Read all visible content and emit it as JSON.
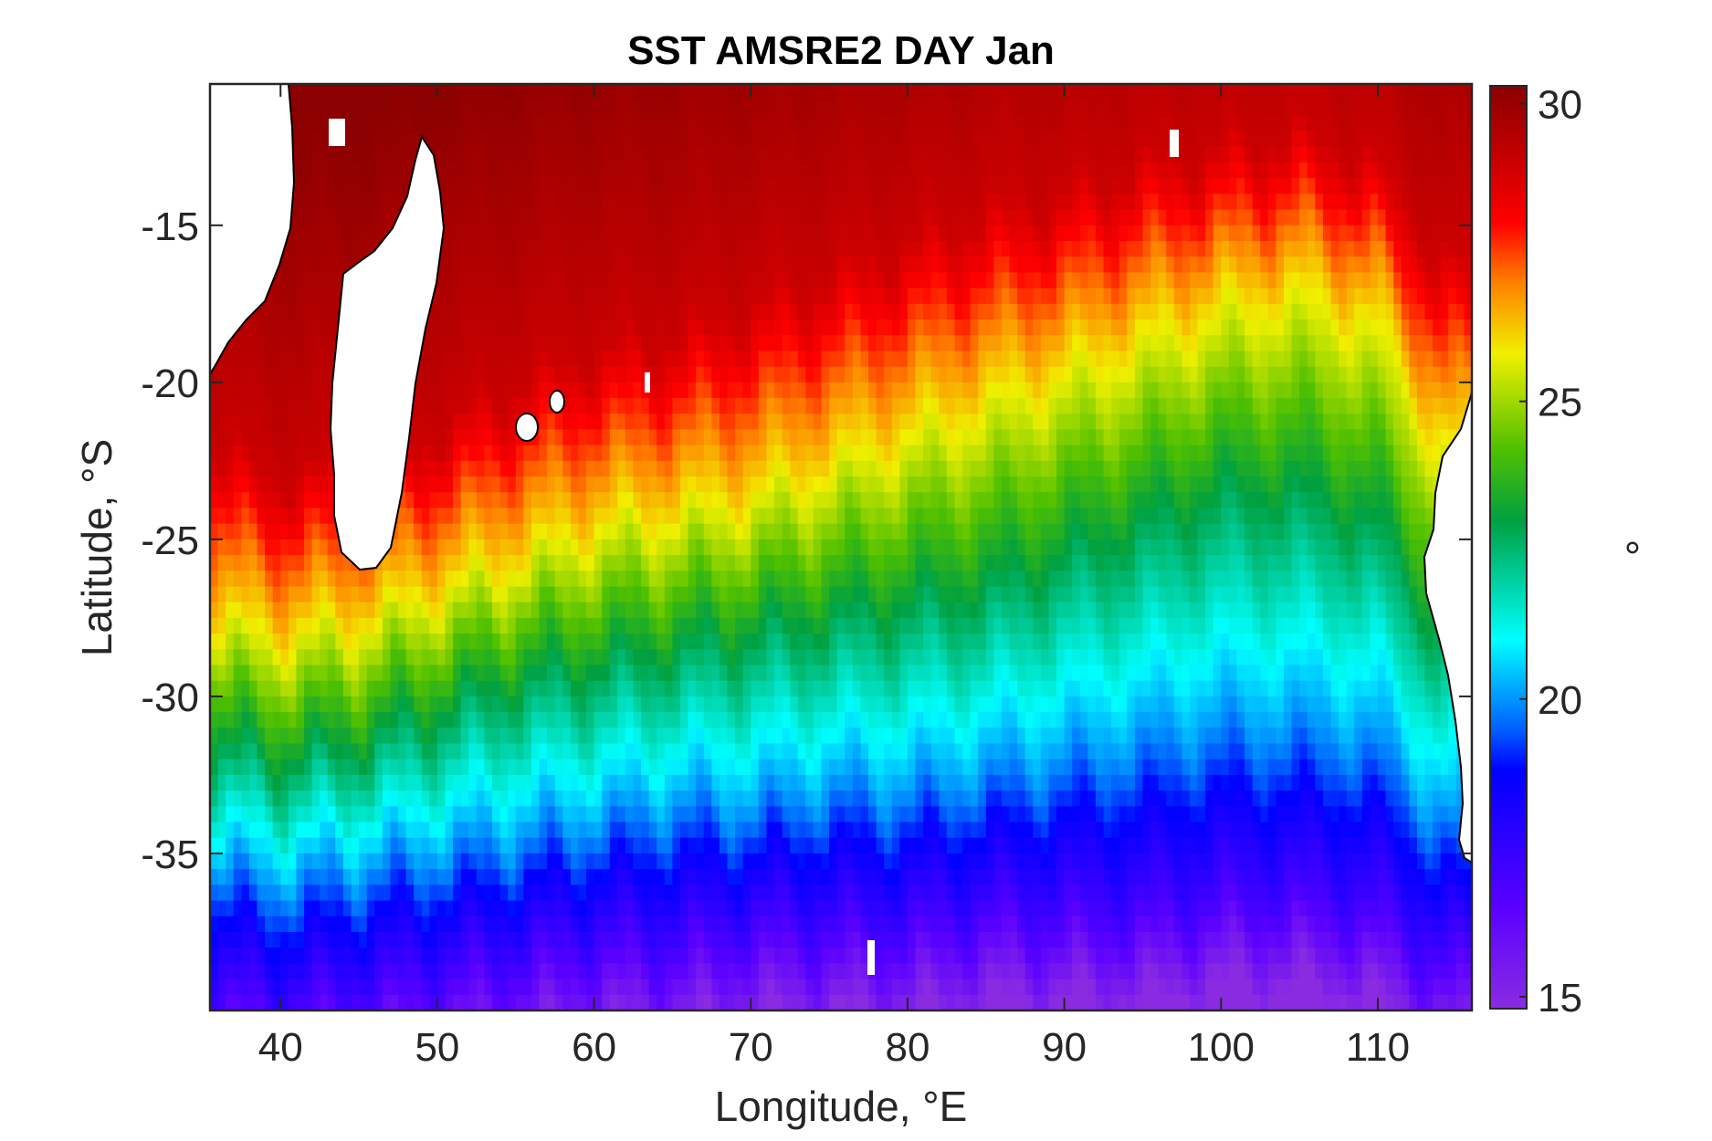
{
  "chart_data": {
    "type": "heatmap",
    "title": "SST AMSRE2 DAY Jan",
    "xlabel": "Longitude, °E",
    "ylabel": "Latitude, °S",
    "colorbar_label": "°",
    "xlim": [
      35.5,
      116
    ],
    "ylim": [
      -40,
      -10.5
    ],
    "x_ticks": [
      40,
      50,
      60,
      70,
      80,
      90,
      100,
      110
    ],
    "y_ticks": [
      -15,
      -20,
      -25,
      -30,
      -35
    ],
    "clim": [
      14.8,
      30.3
    ],
    "colorbar_ticks": [
      30,
      25,
      20,
      15
    ],
    "colormap": "jet-like (purple → blue → cyan → green → yellow → orange → red → dark red)",
    "colormap_stops": [
      {
        "value": 14.8,
        "color": "#8a2be2"
      },
      {
        "value": 16.5,
        "color": "#5a00ff"
      },
      {
        "value": 18.8,
        "color": "#0000ff"
      },
      {
        "value": 19.5,
        "color": "#0060ff"
      },
      {
        "value": 21.0,
        "color": "#00ffff"
      },
      {
        "value": 23.0,
        "color": "#00a040"
      },
      {
        "value": 24.2,
        "color": "#50c000"
      },
      {
        "value": 25.8,
        "color": "#f0f000"
      },
      {
        "value": 27.0,
        "color": "#ff8000"
      },
      {
        "value": 28.0,
        "color": "#ff0000"
      },
      {
        "value": 29.2,
        "color": "#c00000"
      },
      {
        "value": 30.3,
        "color": "#8b0000"
      }
    ],
    "isotherm_latitudes_by_longitude": {
      "longitude": [
        36,
        40,
        45,
        50,
        55,
        60,
        65,
        70,
        75,
        80,
        85,
        90,
        95,
        100,
        105,
        110,
        114
      ],
      "sst_29": [
        -22.0,
        -23.0,
        -22.5,
        -21.5,
        -20.0,
        -19.0,
        -18.5,
        -17.5,
        -16.5,
        -15.5,
        -14.5,
        -14.0,
        -13.0,
        -12.5,
        -12.0,
        -13.0,
        -16.0
      ],
      "sst_26": [
        -27.5,
        -28.0,
        -27.5,
        -26.5,
        -25.5,
        -24.5,
        -24.0,
        -23.5,
        -22.5,
        -21.5,
        -20.5,
        -19.5,
        -18.5,
        -17.5,
        -17.0,
        -18.0,
        -22.0
      ],
      "sst_23": [
        -31.5,
        -32.0,
        -31.5,
        -30.5,
        -29.5,
        -29.0,
        -28.5,
        -28.0,
        -27.5,
        -27.0,
        -26.5,
        -25.5,
        -24.5,
        -23.5,
        -23.5,
        -24.5,
        -28.0
      ],
      "sst_20": [
        -35.5,
        -36.0,
        -35.5,
        -35.0,
        -34.5,
        -34.0,
        -33.5,
        -33.5,
        -33.0,
        -33.0,
        -32.5,
        -32.0,
        -31.5,
        -31.0,
        -31.0,
        -31.5,
        -34.0
      ],
      "sst_17": [
        -39.5,
        -40.0,
        -39.5,
        -39.0,
        -38.5,
        -38.0,
        -38.0,
        -37.5,
        -37.5,
        -37.5,
        -37.0,
        -37.0,
        -37.0,
        -36.5,
        -36.5,
        -37.0,
        -38.5
      ]
    },
    "land_masses": [
      "Africa (east coast)",
      "Madagascar",
      "Australia (west coast)",
      "small islands"
    ],
    "land_color": "#ffffff",
    "grid": false
  }
}
